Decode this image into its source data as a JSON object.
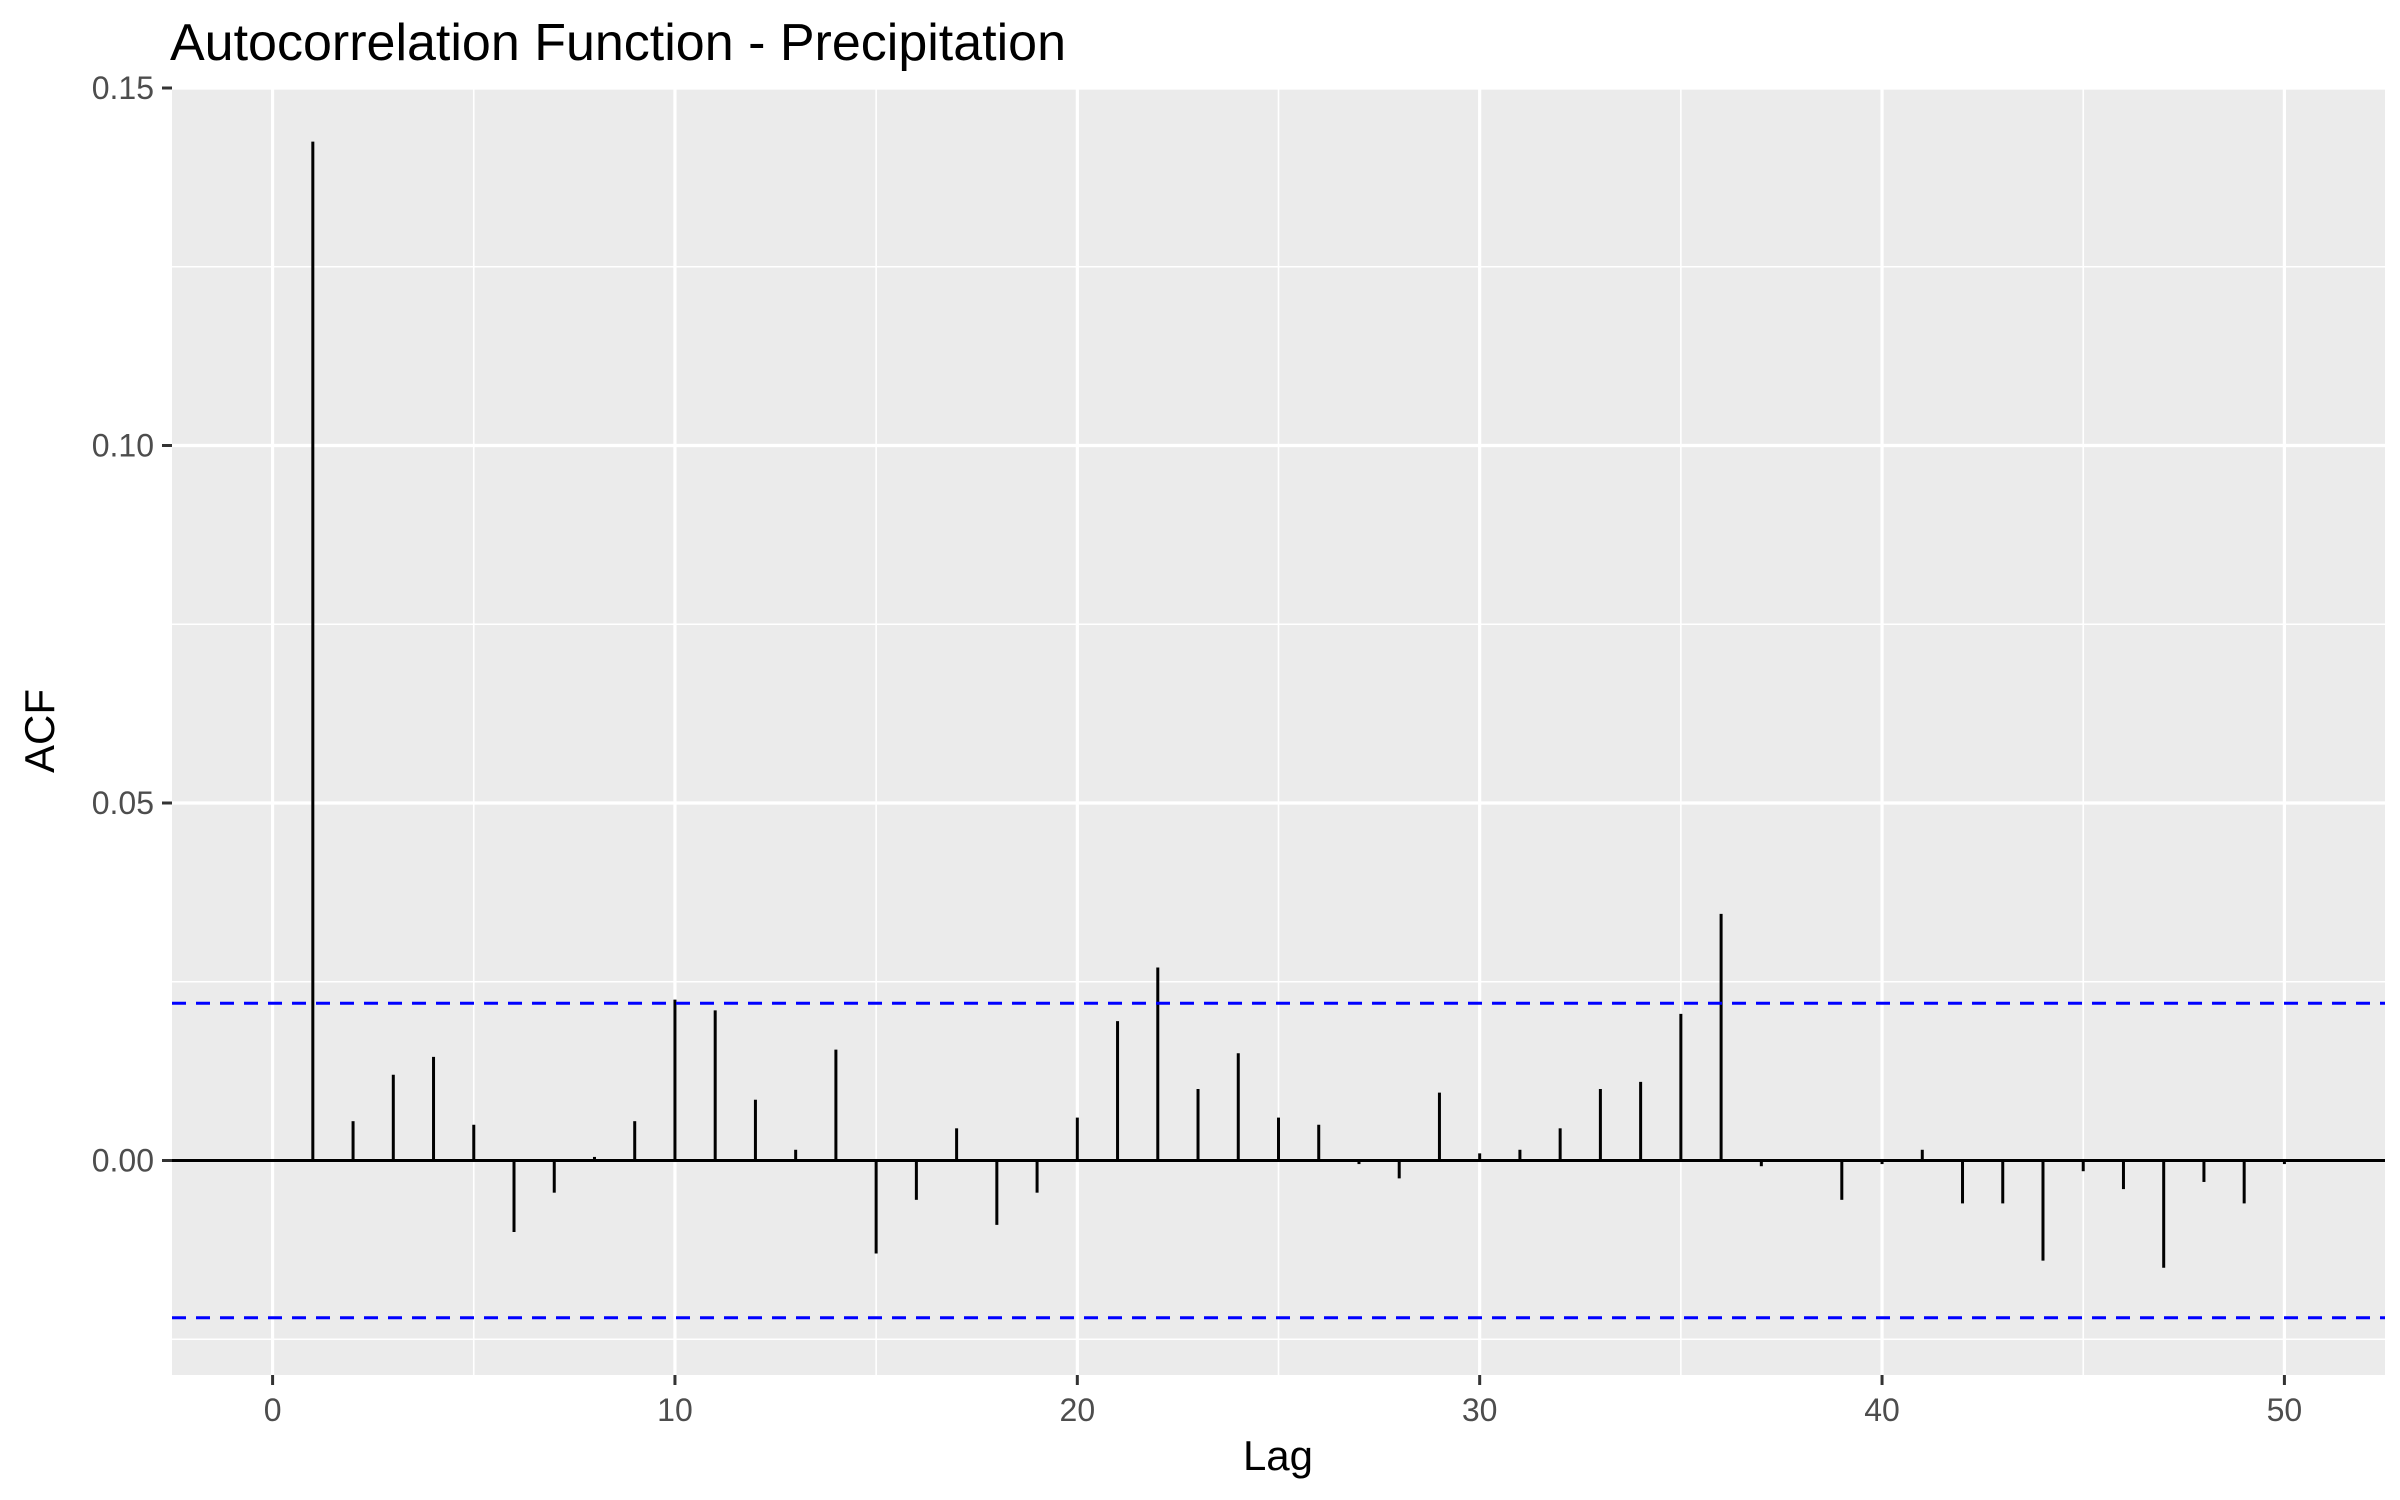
{
  "chart_data": {
    "type": "bar",
    "subtype": "acf-lollipop",
    "title": "Autocorrelation Function - Precipitation",
    "xlabel": "Lag",
    "ylabel": "ACF",
    "xlim": [
      -2.5,
      52.5
    ],
    "ylim": [
      -0.03,
      0.15
    ],
    "x_ticks": [
      0,
      10,
      20,
      30,
      40,
      50
    ],
    "y_ticks": [
      0.0,
      0.05,
      0.1,
      0.15
    ],
    "y_tick_labels": [
      "0.00",
      "0.05",
      "0.10",
      "0.15"
    ],
    "grid": true,
    "confidence_bound": 0.022,
    "colors": {
      "panel": "#ebebeb",
      "grid": "#ffffff",
      "segment": "#000000",
      "ci_line": "#0000ff"
    },
    "series": [
      {
        "lags": [
          1,
          2,
          3,
          4,
          5,
          6,
          7,
          8,
          9,
          10,
          11,
          12,
          13,
          14,
          15,
          16,
          17,
          18,
          19,
          20,
          21,
          22,
          23,
          24,
          25,
          26,
          27,
          28,
          29,
          30,
          31,
          32,
          33,
          34,
          35,
          36,
          37,
          38,
          39,
          40,
          41,
          42,
          43,
          44,
          45,
          46,
          47,
          48,
          49,
          50
        ],
        "values": [
          0.1425,
          0.0055,
          0.012,
          0.0145,
          0.005,
          -0.01,
          -0.0045,
          0.0005,
          0.0055,
          0.0225,
          0.021,
          0.0085,
          0.0015,
          0.0155,
          -0.013,
          -0.0055,
          0.0045,
          -0.009,
          -0.0045,
          0.006,
          0.0195,
          0.027,
          0.01,
          0.015,
          0.006,
          0.005,
          -0.0005,
          -0.0025,
          0.0095,
          0.001,
          0.0015,
          0.0045,
          0.01,
          0.011,
          0.0205,
          0.0345,
          -0.0008,
          0.0,
          -0.0055,
          -0.0005,
          0.0015,
          -0.006,
          -0.006,
          -0.014,
          -0.0015,
          -0.004,
          -0.015,
          -0.003,
          -0.006,
          -0.0005
        ]
      }
    ]
  }
}
